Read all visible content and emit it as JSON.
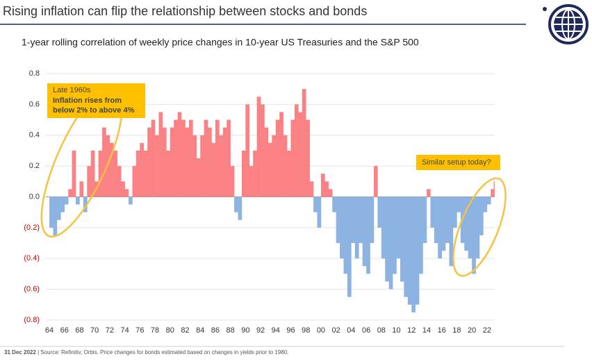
{
  "chart_data": {
    "type": "bar",
    "title": "Rising inflation can flip the relationship between stocks and bonds",
    "subtitle": "1-year rolling correlation of weekly price changes in 10-year US Treasuries and the S&P 500",
    "x": [
      1964,
      1964.5,
      1965,
      1965.5,
      1966,
      1966.5,
      1967,
      1967.5,
      1968,
      1968.5,
      1969,
      1969.5,
      1970,
      1970.5,
      1971,
      1971.5,
      1972,
      1972.5,
      1973,
      1973.5,
      1974,
      1974.5,
      1975,
      1975.5,
      1976,
      1976.5,
      1977,
      1977.5,
      1978,
      1978.5,
      1979,
      1979.5,
      1980,
      1980.5,
      1981,
      1981.5,
      1982,
      1982.5,
      1983,
      1983.5,
      1984,
      1984.5,
      1985,
      1985.5,
      1986,
      1986.5,
      1987,
      1987.5,
      1988,
      1988.5,
      1989,
      1989.5,
      1990,
      1990.5,
      1991,
      1991.5,
      1992,
      1992.5,
      1993,
      1993.5,
      1994,
      1994.5,
      1995,
      1995.5,
      1996,
      1996.5,
      1997,
      1997.5,
      1998,
      1998.5,
      1999,
      1999.5,
      2000,
      2000.5,
      2001,
      2001.5,
      2002,
      2002.5,
      2003,
      2003.5,
      2004,
      2004.5,
      2005,
      2005.5,
      2006,
      2006.5,
      2007,
      2007.5,
      2008,
      2008.5,
      2009,
      2009.5,
      2010,
      2010.5,
      2011,
      2011.5,
      2012,
      2012.5,
      2013,
      2013.5,
      2014,
      2014.5,
      2015,
      2015.5,
      2016,
      2016.5,
      2017,
      2017.5,
      2018,
      2018.5,
      2019,
      2019.5,
      2020,
      2020.5,
      2021,
      2021.5,
      2022,
      2022.5,
      2022.9
    ],
    "values": [
      -0.2,
      -0.25,
      -0.15,
      -0.1,
      -0.05,
      0.05,
      0.3,
      -0.05,
      0.1,
      -0.1,
      0.2,
      0.3,
      0.1,
      0.3,
      0.45,
      0.4,
      0.35,
      0.3,
      0.2,
      0.1,
      0.05,
      -0.05,
      0.2,
      0.3,
      0.35,
      0.3,
      0.45,
      0.5,
      0.4,
      0.55,
      0.45,
      0.3,
      0.45,
      0.5,
      0.55,
      0.5,
      0.45,
      0.5,
      0.4,
      0.25,
      0.4,
      0.5,
      0.45,
      0.35,
      0.5,
      0.4,
      0.45,
      0.5,
      0.2,
      -0.1,
      -0.15,
      0.3,
      0.6,
      0.2,
      0.3,
      0.65,
      0.6,
      0.45,
      0.35,
      0.4,
      0.5,
      0.55,
      0.4,
      0.3,
      0.5,
      0.6,
      0.55,
      0.7,
      0.5,
      0.1,
      -0.1,
      -0.2,
      0.15,
      0.1,
      0.05,
      -0.1,
      -0.3,
      -0.4,
      -0.5,
      -0.65,
      -0.3,
      -0.4,
      -0.3,
      -0.45,
      -0.5,
      -0.3,
      0.2,
      -0.2,
      -0.4,
      -0.55,
      -0.6,
      -0.5,
      -0.4,
      -0.55,
      -0.65,
      -0.7,
      -0.75,
      -0.7,
      -0.5,
      -0.3,
      0.05,
      -0.2,
      -0.3,
      -0.4,
      -0.35,
      -0.3,
      -0.45,
      -0.2,
      -0.1,
      -0.3,
      -0.35,
      -0.4,
      -0.5,
      -0.4,
      -0.25,
      -0.1,
      -0.05,
      0.05,
      0.1
    ],
    "positive_color": "#fa8284",
    "negative_color": "#8db3e2",
    "negative_tick_color": "#c00000",
    "xlim": [
      1963.5,
      2023
    ],
    "xticks": [
      {
        "value": 1964,
        "label": "64"
      },
      {
        "value": 1966,
        "label": "66"
      },
      {
        "value": 1968,
        "label": "68"
      },
      {
        "value": 1970,
        "label": "70"
      },
      {
        "value": 1972,
        "label": "72"
      },
      {
        "value": 1974,
        "label": "74"
      },
      {
        "value": 1976,
        "label": "76"
      },
      {
        "value": 1978,
        "label": "78"
      },
      {
        "value": 1980,
        "label": "80"
      },
      {
        "value": 1982,
        "label": "82"
      },
      {
        "value": 1984,
        "label": "84"
      },
      {
        "value": 1986,
        "label": "86"
      },
      {
        "value": 1988,
        "label": "88"
      },
      {
        "value": 1990,
        "label": "90"
      },
      {
        "value": 1992,
        "label": "92"
      },
      {
        "value": 1994,
        "label": "94"
      },
      {
        "value": 1996,
        "label": "96"
      },
      {
        "value": 1998,
        "label": "98"
      },
      {
        "value": 2000,
        "label": "00"
      },
      {
        "value": 2002,
        "label": "02"
      },
      {
        "value": 2004,
        "label": "04"
      },
      {
        "value": 2006,
        "label": "06"
      },
      {
        "value": 2008,
        "label": "08"
      },
      {
        "value": 2010,
        "label": "10"
      },
      {
        "value": 2012,
        "label": "12"
      },
      {
        "value": 2014,
        "label": "14"
      },
      {
        "value": 2016,
        "label": "16"
      },
      {
        "value": 2018,
        "label": "18"
      },
      {
        "value": 2020,
        "label": "20"
      },
      {
        "value": 2022,
        "label": "22"
      }
    ],
    "ylim": [
      -0.8,
      0.8
    ],
    "yticks": [
      0.8,
      0.6,
      0.4,
      0.2,
      {
        "value": 0,
        "label": "0.0"
      },
      {
        "value": -0.2,
        "label": "(0.2)"
      },
      {
        "value": -0.4,
        "label": "(0.4)"
      },
      {
        "value": -0.6,
        "label": "(0.6)"
      },
      {
        "value": -0.8,
        "label": "(0.8)"
      }
    ],
    "grid": true,
    "annotation_left": [
      "Late 1960s",
      "Inflation rises from",
      "below 2% to above 4%"
    ],
    "annotation_right": "Similar setup today?",
    "footer": {
      "date": "31 Dec 2022",
      "source": "| Source: Refinitiv, Orbis. Price changes for bonds estimated based on changes in yields prior to 1980."
    }
  }
}
